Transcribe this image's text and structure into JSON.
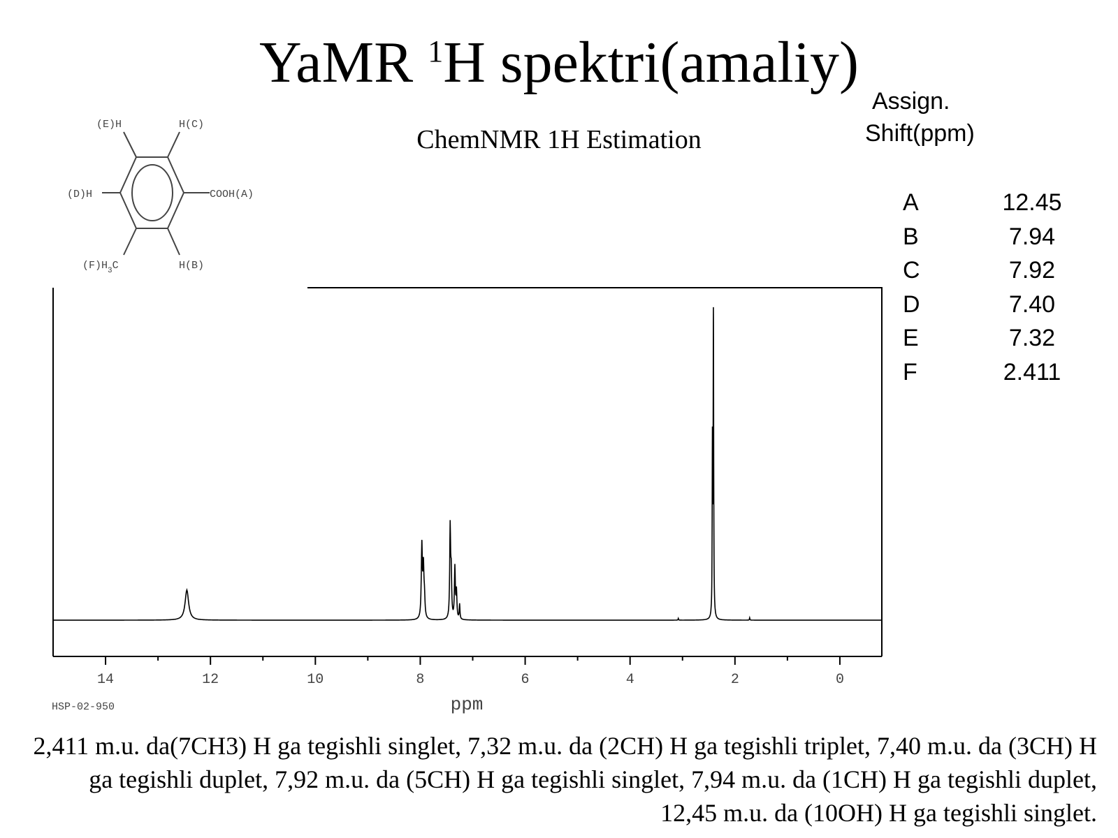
{
  "title": {
    "main": "YaMR ",
    "sup": "1",
    "rest": "H spektri(amaliy)"
  },
  "chart_subtitle": "ChemNMR 1H Estimation",
  "assignments": {
    "header_line1": "Assign.",
    "header_line2": "Shift(ppm)",
    "rows": [
      {
        "label": "A",
        "shift": "12.45"
      },
      {
        "label": "B",
        "shift": "7.94"
      },
      {
        "label": "C",
        "shift": "7.92"
      },
      {
        "label": "D",
        "shift": "7.40"
      },
      {
        "label": "E",
        "shift": "7.32"
      },
      {
        "label": "F",
        "shift": "2.411"
      }
    ]
  },
  "structure": {
    "labels": {
      "E": "(E)H",
      "C": "H(C)",
      "D": "(D)H",
      "A": "COOH(A)",
      "F": "(F)H3C",
      "B": "H(B)"
    }
  },
  "chart_data": {
    "type": "line",
    "xlabel": "ppm",
    "x_reversed": true,
    "xlim": [
      15.0,
      -0.8
    ],
    "x_ticks": [
      14,
      12,
      10,
      8,
      6,
      4,
      2,
      0
    ],
    "ylim": [
      -0.12,
      1.1
    ],
    "baseline": 0,
    "grid": false,
    "sample_id": "HSP-02-950",
    "peaks": [
      {
        "shift": 12.45,
        "height": 0.1,
        "width": 0.04
      },
      {
        "shift": 7.97,
        "height": 0.24,
        "width": 0.012
      },
      {
        "shift": 7.94,
        "height": 0.16,
        "width": 0.012
      },
      {
        "shift": 7.92,
        "height": 0.06,
        "width": 0.012
      },
      {
        "shift": 7.43,
        "height": 0.3,
        "width": 0.01
      },
      {
        "shift": 7.41,
        "height": 0.14,
        "width": 0.01
      },
      {
        "shift": 7.34,
        "height": 0.17,
        "width": 0.01
      },
      {
        "shift": 7.31,
        "height": 0.09,
        "width": 0.01
      },
      {
        "shift": 7.25,
        "height": 0.05,
        "width": 0.008
      },
      {
        "shift": 2.411,
        "height": 1.0,
        "width": 0.006
      },
      {
        "shift": 2.43,
        "height": 0.55,
        "width": 0.005
      },
      {
        "shift": 3.08,
        "height": 0.006,
        "width": 0.005
      },
      {
        "shift": 1.72,
        "height": 0.008,
        "width": 0.005
      }
    ]
  },
  "caption": "2,411 m.u. da(7CH3) H ga tegishli singlet, 7,32 m.u. da (2CH) H ga tegishli triplet, 7,40 m.u. da (3CH) H ga tegishli duplet, 7,92 m.u. da (5CH) H ga tegishli singlet, 7,94 m.u. da (1CH) H ga tegishli duplet, 12,45 m.u. da (10OH) H ga tegishli singlet."
}
